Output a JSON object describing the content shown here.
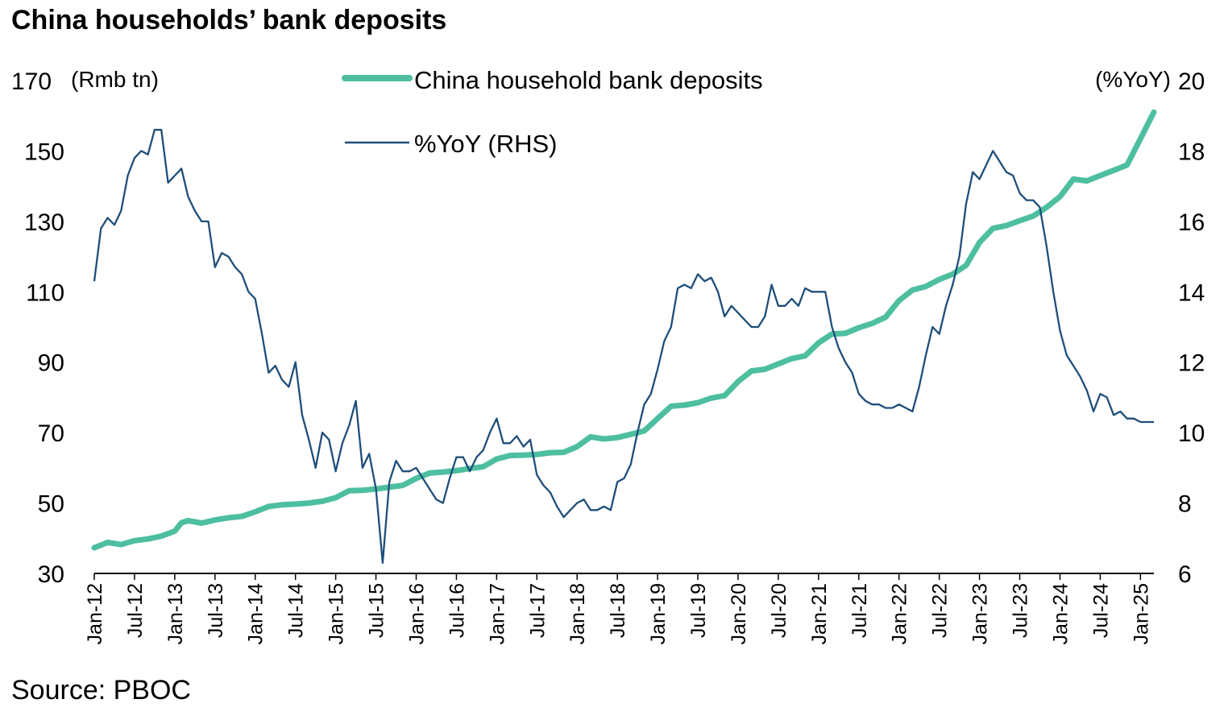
{
  "title": "China households’ bank deposits",
  "source": "Source: PBOC",
  "colors": {
    "deposits": "#4DBFA0",
    "yoy": "#1F4E79",
    "axis": "#000000"
  },
  "chart_data": {
    "type": "line",
    "left_unit": "(Rmb tn)",
    "right_unit": "(%YoY)",
    "y_left": {
      "min": 30,
      "max": 170,
      "ticks": [
        30,
        50,
        70,
        90,
        110,
        130,
        150,
        170
      ]
    },
    "y_right": {
      "min": 6,
      "max": 20,
      "ticks": [
        6,
        8,
        10,
        12,
        14,
        16,
        18,
        20
      ]
    },
    "x_start": "2012-01",
    "x_end": "2025-03",
    "x_ticks": [
      "Jan-12",
      "Jul-12",
      "Jan-13",
      "Jul-13",
      "Jan-14",
      "Jul-14",
      "Jan-15",
      "Jul-15",
      "Jan-16",
      "Jul-16",
      "Jan-17",
      "Jul-17",
      "Jan-18",
      "Jul-18",
      "Jan-19",
      "Jul-19",
      "Jan-20",
      "Jul-20",
      "Jan-21",
      "Jul-21",
      "Jan-22",
      "Jul-22",
      "Jan-23",
      "Jul-23",
      "Jan-24",
      "Jul-24",
      "Jan-25"
    ],
    "grid": false,
    "legend_position": "top-center",
    "series": [
      {
        "name": "China household bank deposits",
        "axis": "left",
        "points": [
          [
            "2012-01",
            37.3
          ],
          [
            "2012-03",
            38.8
          ],
          [
            "2012-05",
            38.2
          ],
          [
            "2012-07",
            39.3
          ],
          [
            "2012-09",
            39.8
          ],
          [
            "2012-11",
            40.6
          ],
          [
            "2013-01",
            42.0
          ],
          [
            "2013-02",
            44.4
          ],
          [
            "2013-03",
            45.0
          ],
          [
            "2013-05",
            44.3
          ],
          [
            "2013-07",
            45.2
          ],
          [
            "2013-09",
            45.8
          ],
          [
            "2013-11",
            46.2
          ],
          [
            "2014-01",
            47.5
          ],
          [
            "2014-03",
            49.0
          ],
          [
            "2014-05",
            49.5
          ],
          [
            "2014-07",
            49.7
          ],
          [
            "2014-09",
            50.0
          ],
          [
            "2014-11",
            50.5
          ],
          [
            "2015-01",
            51.5
          ],
          [
            "2015-03",
            53.5
          ],
          [
            "2015-05",
            53.6
          ],
          [
            "2015-07",
            54.0
          ],
          [
            "2015-09",
            54.5
          ],
          [
            "2015-11",
            55.0
          ],
          [
            "2016-01",
            57.0
          ],
          [
            "2016-03",
            58.5
          ],
          [
            "2016-05",
            58.8
          ],
          [
            "2016-07",
            59.2
          ],
          [
            "2016-09",
            59.8
          ],
          [
            "2016-11",
            60.3
          ],
          [
            "2017-01",
            62.5
          ],
          [
            "2017-03",
            63.5
          ],
          [
            "2017-05",
            63.6
          ],
          [
            "2017-07",
            63.8
          ],
          [
            "2017-09",
            64.3
          ],
          [
            "2017-11",
            64.4
          ],
          [
            "2018-01",
            66.0
          ],
          [
            "2018-03",
            68.8
          ],
          [
            "2018-05",
            68.2
          ],
          [
            "2018-07",
            68.6
          ],
          [
            "2018-09",
            69.5
          ],
          [
            "2018-11",
            70.5
          ],
          [
            "2019-01",
            74.0
          ],
          [
            "2019-03",
            77.5
          ],
          [
            "2019-05",
            77.8
          ],
          [
            "2019-07",
            78.5
          ],
          [
            "2019-09",
            79.8
          ],
          [
            "2019-11",
            80.5
          ],
          [
            "2020-01",
            84.5
          ],
          [
            "2020-03",
            87.5
          ],
          [
            "2020-05",
            88.0
          ],
          [
            "2020-07",
            89.5
          ],
          [
            "2020-09",
            91.0
          ],
          [
            "2020-11",
            91.8
          ],
          [
            "2021-01",
            95.5
          ],
          [
            "2021-03",
            98.0
          ],
          [
            "2021-05",
            98.2
          ],
          [
            "2021-07",
            99.8
          ],
          [
            "2021-09",
            101.0
          ],
          [
            "2021-11",
            102.8
          ],
          [
            "2022-01",
            107.5
          ],
          [
            "2022-03",
            110.5
          ],
          [
            "2022-05",
            111.5
          ],
          [
            "2022-07",
            113.5
          ],
          [
            "2022-09",
            115.0
          ],
          [
            "2022-11",
            117.5
          ],
          [
            "2023-01",
            124.0
          ],
          [
            "2023-03",
            128.0
          ],
          [
            "2023-05",
            128.8
          ],
          [
            "2023-07",
            130.2
          ],
          [
            "2023-09",
            131.5
          ],
          [
            "2023-11",
            134.0
          ],
          [
            "2024-01",
            137.0
          ],
          [
            "2024-03",
            142.0
          ],
          [
            "2024-05",
            141.5
          ],
          [
            "2024-07",
            143.0
          ],
          [
            "2024-09",
            144.5
          ],
          [
            "2024-11",
            146.0
          ],
          [
            "2025-01",
            153.5
          ],
          [
            "2025-03",
            161.0
          ]
        ]
      },
      {
        "name": "%YoY (RHS)",
        "axis": "right",
        "points": [
          [
            "2012-01",
            14.3
          ],
          [
            "2012-02",
            15.8
          ],
          [
            "2012-03",
            16.1
          ],
          [
            "2012-04",
            15.9
          ],
          [
            "2012-05",
            16.3
          ],
          [
            "2012-06",
            17.3
          ],
          [
            "2012-07",
            17.8
          ],
          [
            "2012-08",
            18.0
          ],
          [
            "2012-09",
            17.9
          ],
          [
            "2012-10",
            18.6
          ],
          [
            "2012-11",
            18.6
          ],
          [
            "2012-12",
            17.1
          ],
          [
            "2013-01",
            17.3
          ],
          [
            "2013-02",
            17.5
          ],
          [
            "2013-03",
            16.7
          ],
          [
            "2013-04",
            16.3
          ],
          [
            "2013-05",
            16.0
          ],
          [
            "2013-06",
            16.0
          ],
          [
            "2013-07",
            14.7
          ],
          [
            "2013-08",
            15.1
          ],
          [
            "2013-09",
            15.0
          ],
          [
            "2013-10",
            14.7
          ],
          [
            "2013-11",
            14.5
          ],
          [
            "2013-12",
            14.0
          ],
          [
            "2014-01",
            13.8
          ],
          [
            "2014-02",
            12.8
          ],
          [
            "2014-03",
            11.7
          ],
          [
            "2014-04",
            11.9
          ],
          [
            "2014-05",
            11.5
          ],
          [
            "2014-06",
            11.3
          ],
          [
            "2014-07",
            12.0
          ],
          [
            "2014-08",
            10.5
          ],
          [
            "2014-09",
            9.8
          ],
          [
            "2014-10",
            9.0
          ],
          [
            "2014-11",
            10.0
          ],
          [
            "2014-12",
            9.8
          ],
          [
            "2015-01",
            8.9
          ],
          [
            "2015-02",
            9.7
          ],
          [
            "2015-03",
            10.2
          ],
          [
            "2015-04",
            10.9
          ],
          [
            "2015-05",
            9.0
          ],
          [
            "2015-06",
            9.4
          ],
          [
            "2015-07",
            8.4
          ],
          [
            "2015-08",
            6.3
          ],
          [
            "2015-09",
            8.6
          ],
          [
            "2015-10",
            9.2
          ],
          [
            "2015-11",
            8.9
          ],
          [
            "2015-12",
            8.9
          ],
          [
            "2016-01",
            9.0
          ],
          [
            "2016-02",
            8.7
          ],
          [
            "2016-03",
            8.4
          ],
          [
            "2016-04",
            8.1
          ],
          [
            "2016-05",
            8.0
          ],
          [
            "2016-06",
            8.7
          ],
          [
            "2016-07",
            9.3
          ],
          [
            "2016-08",
            9.3
          ],
          [
            "2016-09",
            8.9
          ],
          [
            "2016-10",
            9.3
          ],
          [
            "2016-11",
            9.5
          ],
          [
            "2016-12",
            10.0
          ],
          [
            "2017-01",
            10.4
          ],
          [
            "2017-02",
            9.7
          ],
          [
            "2017-03",
            9.7
          ],
          [
            "2017-04",
            9.9
          ],
          [
            "2017-05",
            9.6
          ],
          [
            "2017-06",
            9.8
          ],
          [
            "2017-07",
            8.8
          ],
          [
            "2017-08",
            8.5
          ],
          [
            "2017-09",
            8.3
          ],
          [
            "2017-10",
            7.9
          ],
          [
            "2017-11",
            7.6
          ],
          [
            "2017-12",
            7.8
          ],
          [
            "2018-01",
            8.0
          ],
          [
            "2018-02",
            8.1
          ],
          [
            "2018-03",
            7.8
          ],
          [
            "2018-04",
            7.8
          ],
          [
            "2018-05",
            7.9
          ],
          [
            "2018-06",
            7.8
          ],
          [
            "2018-07",
            8.6
          ],
          [
            "2018-08",
            8.7
          ],
          [
            "2018-09",
            9.1
          ],
          [
            "2018-10",
            10.0
          ],
          [
            "2018-11",
            10.8
          ],
          [
            "2018-12",
            11.1
          ],
          [
            "2019-01",
            11.8
          ],
          [
            "2019-02",
            12.6
          ],
          [
            "2019-03",
            13.0
          ],
          [
            "2019-04",
            14.1
          ],
          [
            "2019-05",
            14.2
          ],
          [
            "2019-06",
            14.1
          ],
          [
            "2019-07",
            14.5
          ],
          [
            "2019-08",
            14.3
          ],
          [
            "2019-09",
            14.4
          ],
          [
            "2019-10",
            14.0
          ],
          [
            "2019-11",
            13.3
          ],
          [
            "2019-12",
            13.6
          ],
          [
            "2020-01",
            13.4
          ],
          [
            "2020-02",
            13.2
          ],
          [
            "2020-03",
            13.0
          ],
          [
            "2020-04",
            13.0
          ],
          [
            "2020-05",
            13.3
          ],
          [
            "2020-06",
            14.2
          ],
          [
            "2020-07",
            13.6
          ],
          [
            "2020-08",
            13.6
          ],
          [
            "2020-09",
            13.8
          ],
          [
            "2020-10",
            13.6
          ],
          [
            "2020-11",
            14.1
          ],
          [
            "2020-12",
            14.0
          ],
          [
            "2021-01",
            14.0
          ],
          [
            "2021-02",
            14.0
          ],
          [
            "2021-03",
            13.0
          ],
          [
            "2021-04",
            12.4
          ],
          [
            "2021-05",
            12.0
          ],
          [
            "2021-06",
            11.7
          ],
          [
            "2021-07",
            11.1
          ],
          [
            "2021-08",
            10.9
          ],
          [
            "2021-09",
            10.8
          ],
          [
            "2021-10",
            10.8
          ],
          [
            "2021-11",
            10.7
          ],
          [
            "2021-12",
            10.7
          ],
          [
            "2022-01",
            10.8
          ],
          [
            "2022-02",
            10.7
          ],
          [
            "2022-03",
            10.6
          ],
          [
            "2022-04",
            11.3
          ],
          [
            "2022-05",
            12.2
          ],
          [
            "2022-06",
            13.0
          ],
          [
            "2022-07",
            12.8
          ],
          [
            "2022-08",
            13.6
          ],
          [
            "2022-09",
            14.2
          ],
          [
            "2022-10",
            15.0
          ],
          [
            "2022-11",
            16.5
          ],
          [
            "2022-12",
            17.4
          ],
          [
            "2023-01",
            17.2
          ],
          [
            "2023-02",
            17.6
          ],
          [
            "2023-03",
            18.0
          ],
          [
            "2023-04",
            17.7
          ],
          [
            "2023-05",
            17.4
          ],
          [
            "2023-06",
            17.3
          ],
          [
            "2023-07",
            16.8
          ],
          [
            "2023-08",
            16.6
          ],
          [
            "2023-09",
            16.6
          ],
          [
            "2023-10",
            16.4
          ],
          [
            "2023-11",
            15.3
          ],
          [
            "2023-12",
            14.0
          ],
          [
            "2024-01",
            12.9
          ],
          [
            "2024-02",
            12.2
          ],
          [
            "2024-03",
            11.9
          ],
          [
            "2024-04",
            11.6
          ],
          [
            "2024-05",
            11.2
          ],
          [
            "2024-06",
            10.6
          ],
          [
            "2024-07",
            11.1
          ],
          [
            "2024-08",
            11.0
          ],
          [
            "2024-09",
            10.5
          ],
          [
            "2024-10",
            10.6
          ],
          [
            "2024-11",
            10.4
          ],
          [
            "2024-12",
            10.4
          ],
          [
            "2025-01",
            10.3
          ],
          [
            "2025-02",
            10.3
          ],
          [
            "2025-03",
            10.3
          ]
        ]
      }
    ]
  }
}
